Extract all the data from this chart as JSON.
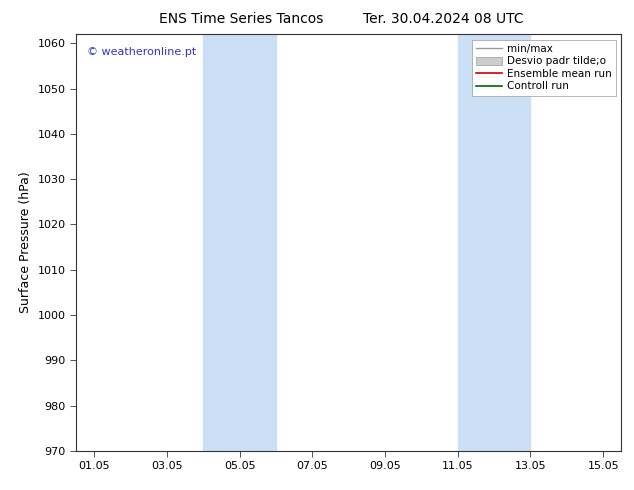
{
  "title": "ENS Time Series Tancos",
  "title2": "Ter. 30.04.2024 08 UTC",
  "ylabel": "Surface Pressure (hPa)",
  "watermark": "© weatheronline.pt",
  "ylim": [
    970,
    1062
  ],
  "yticks": [
    970,
    980,
    990,
    1000,
    1010,
    1020,
    1030,
    1040,
    1050,
    1060
  ],
  "xtick_labels": [
    "01.05",
    "03.05",
    "05.05",
    "07.05",
    "09.05",
    "11.05",
    "13.05",
    "15.05"
  ],
  "xtick_positions": [
    1,
    3,
    5,
    7,
    9,
    11,
    13,
    15
  ],
  "xlim": [
    0.5,
    15.5
  ],
  "shaded_regions": [
    {
      "start": 4.0,
      "end": 6.0
    },
    {
      "start": 11.0,
      "end": 13.0
    }
  ],
  "shaded_color": "#cce0f5",
  "legend_labels": [
    "min/max",
    "Desvio padr tilde;o",
    "Ensemble mean run",
    "Controll run"
  ],
  "background_color": "#ffffff",
  "title_fontsize": 10,
  "tick_fontsize": 8,
  "ylabel_fontsize": 9,
  "watermark_color": "#3333cc"
}
